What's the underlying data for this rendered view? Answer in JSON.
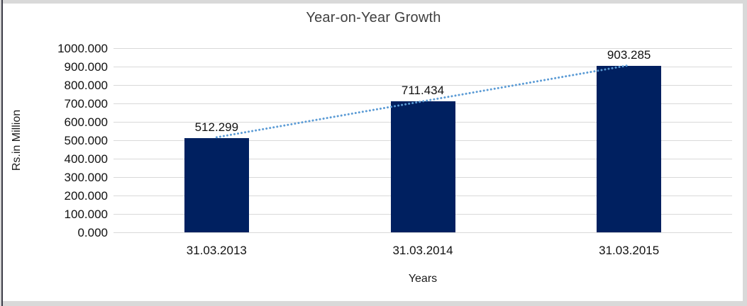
{
  "frame": {
    "outer_border_color": "#d9d9d9",
    "left_edge_color": "#3c3c48",
    "background_color": "#ffffff"
  },
  "chart_data": {
    "type": "bar",
    "title": "Year-on-Year Growth",
    "xlabel": "Years",
    "ylabel": "Rs.in Million",
    "categories": [
      "31.03.2013",
      "31.03.2014",
      "31.03.2015"
    ],
    "values": [
      512.299,
      711.434,
      903.285
    ],
    "data_labels": [
      "512.299",
      "711.434",
      "903.285"
    ],
    "ylim": [
      0,
      1000
    ],
    "ytick_step": 100,
    "ytick_labels_top_to_bottom": [
      "1000.000",
      "900.000",
      "800.000",
      "700.000",
      "600.000",
      "500.000",
      "400.000",
      "300.000",
      "200.000",
      "100.000",
      "0.000"
    ],
    "grid": true,
    "legend": "none",
    "bar_color": "#002060",
    "gridline_color": "#d9d9d9",
    "label_color": "#111111",
    "title_color": "#404040",
    "trendline": {
      "type": "linear",
      "style": "dotted",
      "color": "#5b9bd5"
    }
  }
}
